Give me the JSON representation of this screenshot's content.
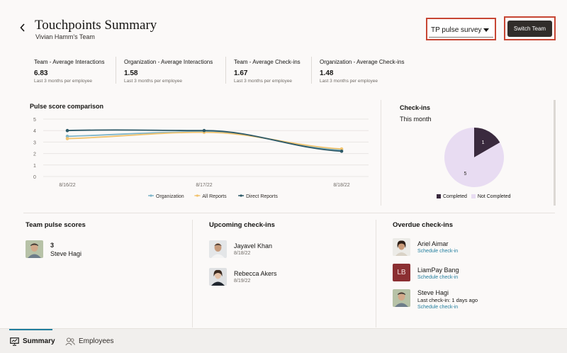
{
  "header": {
    "title": "Touchpoints Summary",
    "subtitle": "Vivian Hamm's Team",
    "back_glyph": "‹",
    "survey_select": {
      "value": "TP pulse survey"
    },
    "switch_team_label": "Switch Team"
  },
  "kpis": [
    {
      "label": "Team - Average Interactions",
      "value": "6.83",
      "caption": "Last 3 months per employee"
    },
    {
      "label": "Organization - Average Interactions",
      "value": "1.58",
      "caption": "Last 3 months per employee"
    },
    {
      "label": "Team - Average Check-ins",
      "value": "1.67",
      "caption": "Last 3 months per employee"
    },
    {
      "label": "Organization - Average Check-ins",
      "value": "1.48",
      "caption": "Last 3 months per employee"
    }
  ],
  "chart_data": [
    {
      "type": "line",
      "title": "Pulse score comparison",
      "x": [
        "8/16/22",
        "8/17/22",
        "8/18/22"
      ],
      "ylim": [
        0,
        5
      ],
      "yticks": [
        "0",
        "1",
        "2",
        "3",
        "4",
        "5"
      ],
      "grid": true,
      "legend": "bottom",
      "series": [
        {
          "name": "Organization",
          "values": [
            3.5,
            3.9,
            2.3
          ],
          "color": "#7fb5c9"
        },
        {
          "name": "All Reports",
          "values": [
            3.3,
            3.85,
            2.4
          ],
          "color": "#f2c36e"
        },
        {
          "name": "Direct Reports",
          "values": [
            4.0,
            4.0,
            2.2
          ],
          "color": "#2d5967"
        }
      ]
    },
    {
      "type": "pie",
      "title": "Check-ins",
      "subtitle": "This month",
      "legend": "bottom",
      "slices": [
        {
          "name": "Completed",
          "value": 1,
          "label": "1",
          "color": "#3a2a3e"
        },
        {
          "name": "Not Completed",
          "value": 5,
          "label": "5",
          "color": "#e8dcf2"
        }
      ]
    }
  ],
  "team_pulse": {
    "title": "Team pulse scores",
    "items": [
      {
        "score": "3",
        "name": "Steve Hagi"
      }
    ]
  },
  "upcoming": {
    "title": "Upcoming check-ins",
    "items": [
      {
        "name": "Jayavel Khan",
        "date": "8/18/22"
      },
      {
        "name": "Rebecca Akers",
        "date": "8/19/22"
      }
    ]
  },
  "overdue": {
    "title": "Overdue check-ins",
    "items": [
      {
        "name": "Ariel Aimar",
        "link": "Schedule check-in"
      },
      {
        "name": "LiamPay Bang",
        "initials": "LB",
        "link": "Schedule check-in"
      },
      {
        "name": "Steve Hagi",
        "last": "Last check-in: 1 days ago",
        "link": "Schedule check-in"
      }
    ]
  },
  "tabs": [
    {
      "label": "Summary",
      "icon": "presentation-icon",
      "active": true
    },
    {
      "label": "Employees",
      "icon": "people-icon",
      "active": false
    }
  ],
  "colors": {
    "accent": "#227e9e",
    "highlight": "#c74634",
    "dark_button": "#312d2a"
  }
}
